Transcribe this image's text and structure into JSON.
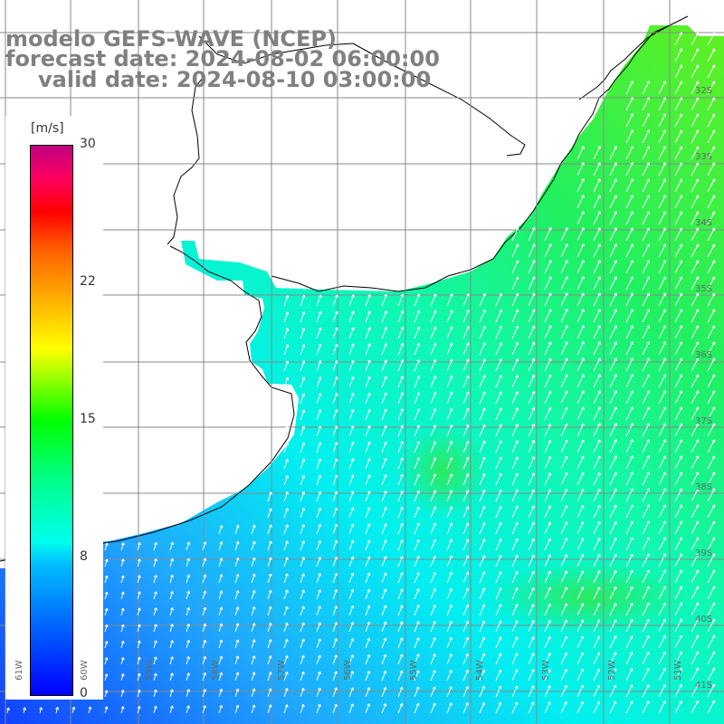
{
  "header": {
    "model_line": "modelo GEFS-WAVE (NCEP)",
    "forecast_line": "forecast date: 2024-08-02 06:00:00",
    "valid_line": "valid date: 2024-08-10 03:00:00"
  },
  "colorbar": {
    "unit": "[m/s]",
    "ticks": [
      "30",
      "22",
      "15",
      "8",
      "0"
    ],
    "tick_values": [
      30,
      22,
      15,
      8,
      0
    ],
    "colors": [
      "#0000ff",
      "#0070ff",
      "#00c0ff",
      "#00ffee",
      "#00ff80",
      "#00ff00",
      "#a0ff00",
      "#ffff00",
      "#ffb000",
      "#ff6000",
      "#ff0000",
      "#ff0060",
      "#c00080"
    ]
  },
  "grid_labels": {
    "longitudes": [
      "61W",
      "60W",
      "59W",
      "58W",
      "57W",
      "56W",
      "55W",
      "54W",
      "53W",
      "52W",
      "51W"
    ],
    "latitudes": [
      "32S",
      "33S",
      "34S",
      "35S",
      "36S",
      "37S",
      "38S",
      "39S",
      "40S",
      "41S"
    ]
  },
  "map": {
    "field": "wind speed with direction arrows",
    "land_color": "#ffffff",
    "coastline_color": "#000000",
    "grid_color": "#888888",
    "arrow_color": "#ffffff"
  }
}
